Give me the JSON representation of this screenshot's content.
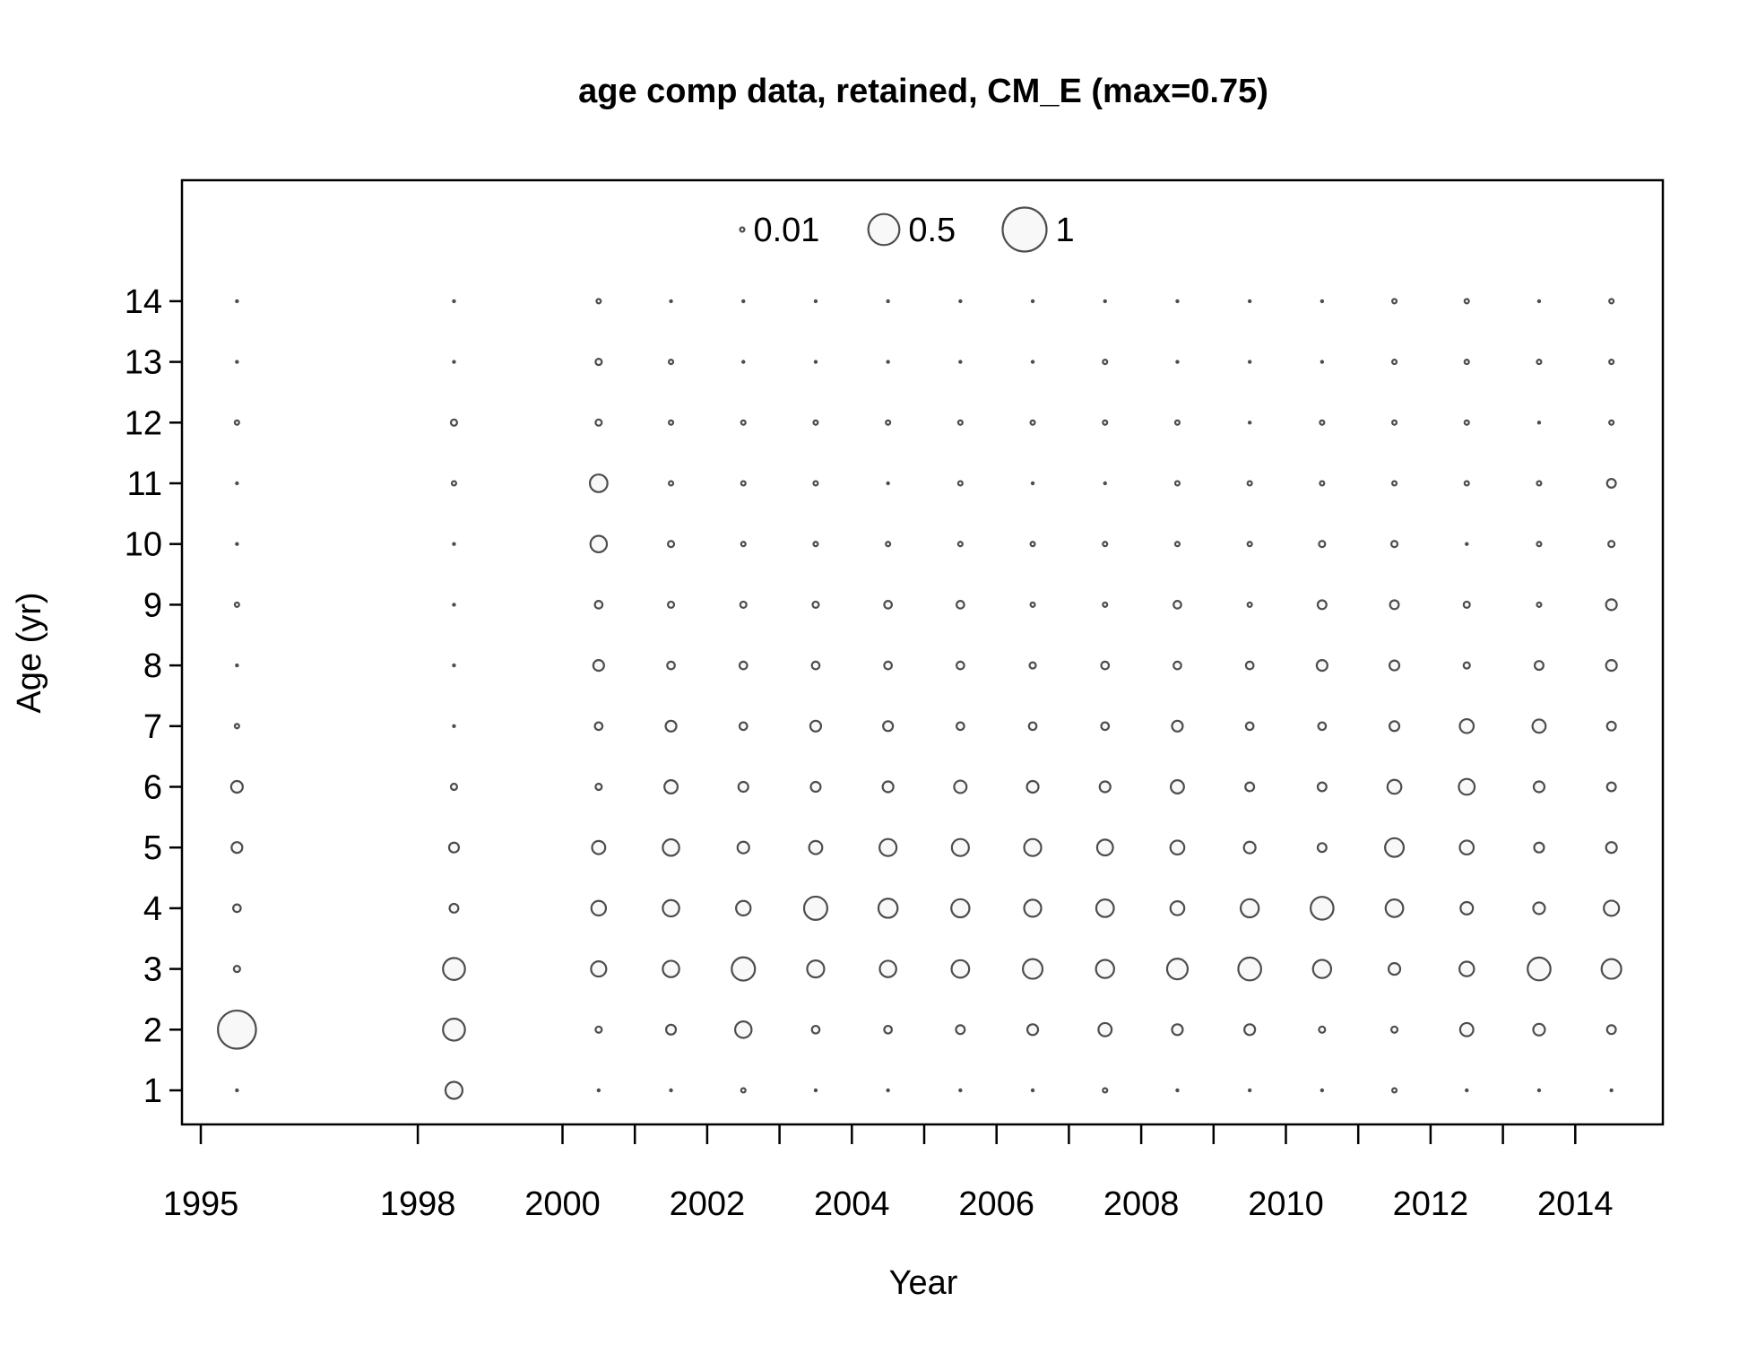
{
  "chart_data": {
    "type": "bubble",
    "title": "age comp data, retained, CM_E (max=0.75)",
    "xlabel": "Year",
    "ylabel": "Age (yr)",
    "xlim": [
      1994.75,
      2015.25
    ],
    "ylim": [
      0.45,
      15.95
    ],
    "x_ticks": [
      1995,
      1998,
      2000,
      2001,
      2002,
      2003,
      2004,
      2005,
      2006,
      2007,
      2008,
      2009,
      2010,
      2011,
      2012,
      2013,
      2014
    ],
    "x_tick_labels": [
      "1995",
      "1998",
      "2000",
      "2002",
      "2004",
      "2006",
      "2008",
      "2010",
      "2012",
      "2014"
    ],
    "y_ticks": [
      1,
      2,
      3,
      4,
      5,
      6,
      7,
      8,
      9,
      10,
      11,
      12,
      13,
      14
    ],
    "legend": {
      "placement": "top-center",
      "entries": [
        {
          "label": "0.01",
          "value": 0.01
        },
        {
          "label": "0.5",
          "value": 0.5
        },
        {
          "label": "1",
          "value": 1
        }
      ]
    },
    "max_proportion": 0.75,
    "ages": [
      1,
      2,
      3,
      4,
      5,
      6,
      7,
      8,
      9,
      10,
      11,
      12,
      13,
      14
    ],
    "series": [
      {
        "year": 1995.5,
        "values": [
          0.002,
          0.75,
          0.02,
          0.03,
          0.06,
          0.07,
          0.01,
          0.002,
          0.01,
          0.002,
          0.002,
          0.01,
          0.002,
          0.002
        ]
      },
      {
        "year": 1998.5,
        "values": [
          0.15,
          0.25,
          0.25,
          0.04,
          0.05,
          0.02,
          0.002,
          0.002,
          0.002,
          0.002,
          0.01,
          0.02,
          0.002,
          0.002
        ]
      },
      {
        "year": 2000.5,
        "values": [
          0.002,
          0.02,
          0.12,
          0.11,
          0.09,
          0.02,
          0.03,
          0.06,
          0.03,
          0.14,
          0.16,
          0.02,
          0.02,
          0.01
        ]
      },
      {
        "year": 2001.5,
        "values": [
          0.002,
          0.05,
          0.14,
          0.14,
          0.14,
          0.09,
          0.06,
          0.03,
          0.02,
          0.02,
          0.01,
          0.01,
          0.01,
          0.002
        ]
      },
      {
        "year": 2002.5,
        "values": [
          0.01,
          0.14,
          0.28,
          0.11,
          0.07,
          0.05,
          0.03,
          0.03,
          0.02,
          0.01,
          0.01,
          0.01,
          0.002,
          0.002
        ]
      },
      {
        "year": 2003.5,
        "values": [
          0.002,
          0.03,
          0.15,
          0.28,
          0.09,
          0.05,
          0.06,
          0.03,
          0.02,
          0.01,
          0.01,
          0.01,
          0.002,
          0.002
        ]
      },
      {
        "year": 2004.5,
        "values": [
          0.002,
          0.03,
          0.14,
          0.19,
          0.15,
          0.06,
          0.05,
          0.03,
          0.03,
          0.01,
          0.002,
          0.01,
          0.002,
          0.002
        ]
      },
      {
        "year": 2005.5,
        "values": [
          0.002,
          0.04,
          0.16,
          0.17,
          0.15,
          0.08,
          0.03,
          0.03,
          0.03,
          0.01,
          0.01,
          0.01,
          0.002,
          0.002
        ]
      },
      {
        "year": 2006.5,
        "values": [
          0.002,
          0.06,
          0.2,
          0.15,
          0.15,
          0.07,
          0.03,
          0.02,
          0.01,
          0.01,
          0.002,
          0.01,
          0.002,
          0.002
        ]
      },
      {
        "year": 2007.5,
        "values": [
          0.01,
          0.09,
          0.17,
          0.16,
          0.13,
          0.06,
          0.03,
          0.03,
          0.01,
          0.01,
          0.002,
          0.01,
          0.01,
          0.002
        ]
      },
      {
        "year": 2008.5,
        "values": [
          0.002,
          0.06,
          0.22,
          0.1,
          0.1,
          0.09,
          0.06,
          0.03,
          0.03,
          0.01,
          0.01,
          0.01,
          0.002,
          0.002
        ]
      },
      {
        "year": 2009.5,
        "values": [
          0.002,
          0.06,
          0.27,
          0.17,
          0.07,
          0.04,
          0.03,
          0.03,
          0.01,
          0.01,
          0.01,
          0.002,
          0.002,
          0.002
        ]
      },
      {
        "year": 2010.5,
        "values": [
          0.002,
          0.02,
          0.17,
          0.27,
          0.04,
          0.04,
          0.03,
          0.06,
          0.04,
          0.02,
          0.01,
          0.01,
          0.002,
          0.002
        ]
      },
      {
        "year": 2011.5,
        "values": [
          0.01,
          0.02,
          0.07,
          0.16,
          0.18,
          0.1,
          0.05,
          0.05,
          0.04,
          0.02,
          0.01,
          0.01,
          0.01,
          0.01
        ]
      },
      {
        "year": 2012.5,
        "values": [
          0.002,
          0.09,
          0.11,
          0.08,
          0.1,
          0.13,
          0.1,
          0.02,
          0.02,
          0.002,
          0.01,
          0.01,
          0.01,
          0.01
        ]
      },
      {
        "year": 2013.5,
        "values": [
          0.002,
          0.07,
          0.27,
          0.07,
          0.05,
          0.06,
          0.09,
          0.04,
          0.01,
          0.01,
          0.01,
          0.002,
          0.01,
          0.002
        ]
      },
      {
        "year": 2014.5,
        "values": [
          0.002,
          0.04,
          0.2,
          0.12,
          0.06,
          0.04,
          0.04,
          0.06,
          0.06,
          0.02,
          0.04,
          0.01,
          0.01,
          0.01
        ]
      }
    ]
  }
}
